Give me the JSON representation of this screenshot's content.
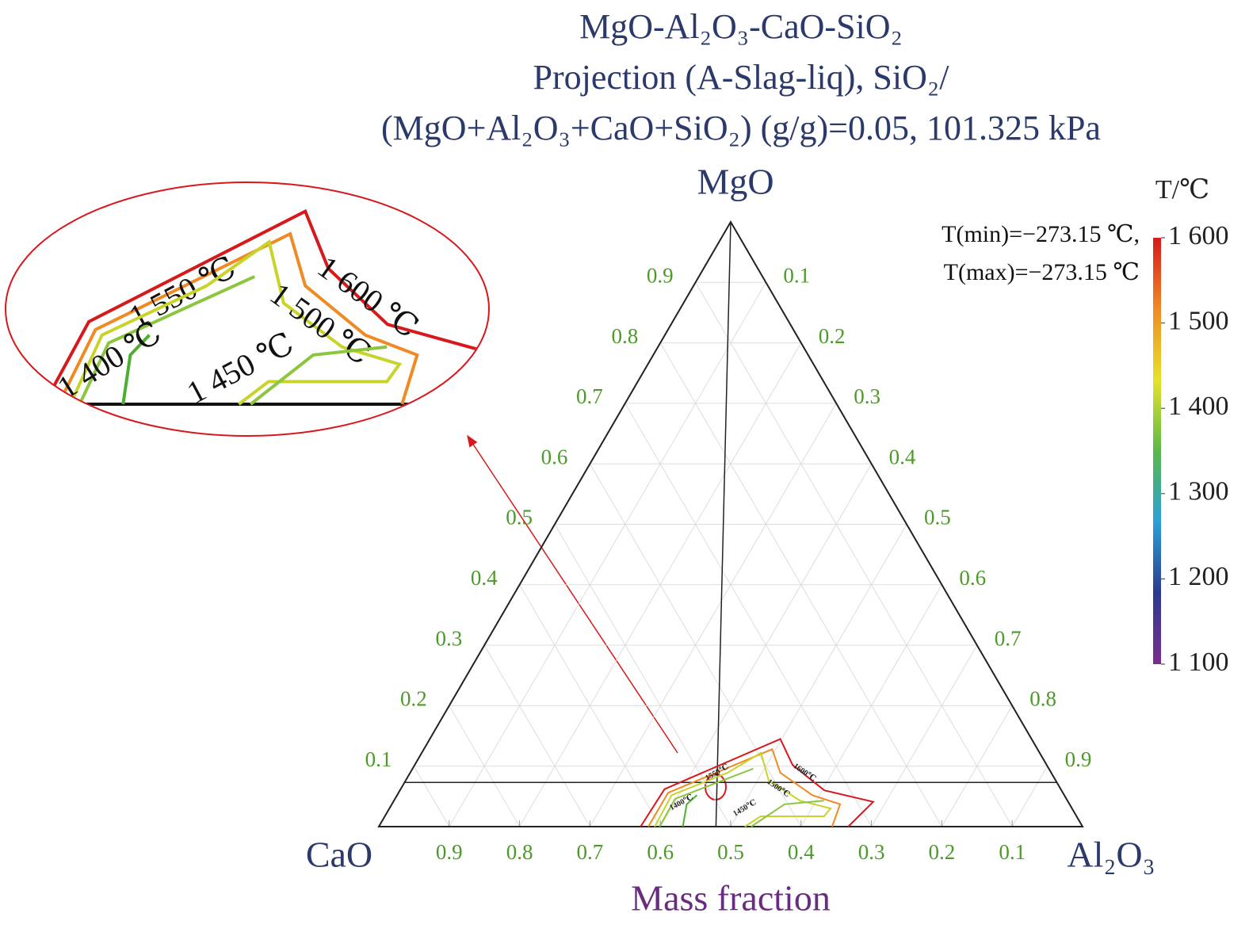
{
  "chart_data": {
    "type": "ternary",
    "title": [
      "MgO-Al₂O₃-CaO-SiO₂",
      "Projection (A-Slag-liq), SiO₂/",
      "(MgO+Al₂O₃+CaO+SiO₂) (g/g)=0.05, 101.325 kPa"
    ],
    "vertices": {
      "top": "MgO",
      "left": "CaO",
      "right": "Al₂O₃"
    },
    "axis_label": "Mass fraction",
    "left_ticks": [
      0.1,
      0.2,
      0.3,
      0.4,
      0.5,
      0.6,
      0.7,
      0.8,
      0.9
    ],
    "right_ticks": [
      0.1,
      0.2,
      0.3,
      0.4,
      0.5,
      0.6,
      0.7,
      0.8,
      0.9
    ],
    "bottom_ticks": [
      0.1,
      0.2,
      0.3,
      0.4,
      0.5,
      0.6,
      0.7,
      0.8,
      0.9
    ],
    "grid": true,
    "annotations": [
      "T(min)=−273.15 ℃,",
      "T(max)=−273.15 ℃"
    ],
    "colorbar": {
      "title": "T/℃",
      "clim": [
        1100,
        1600
      ],
      "colormap": [
        "#7b2d8e",
        "#2b3a8f",
        "#2aa0d8",
        "#5bb84a",
        "#e6e32a",
        "#f08a24",
        "#d7191c"
      ],
      "ticks": [
        {
          "value": 1600,
          "label": "1 600"
        },
        {
          "value": 1500,
          "label": "1 500"
        },
        {
          "value": 1400,
          "label": "1 400"
        },
        {
          "value": 1300,
          "label": "1 300"
        },
        {
          "value": 1200,
          "label": "1 200"
        },
        {
          "value": 1100,
          "label": "1 100"
        }
      ]
    },
    "reference_lines": [
      {
        "mgo": [
          1,
          0
        ],
        "al2o3": [
          0,
          0.479
        ]
      },
      {
        "mgo": [
          0.073,
          0.073
        ],
        "al2o3": [
          0,
          0.927
        ]
      }
    ],
    "contours": [
      {
        "name": "1 600 ℃",
        "small_label": "1600℃",
        "value": 1600,
        "color": "#d7191c",
        "mgo": [
          0,
          0.062,
          0.145,
          0.102,
          0.06,
          0.041,
          0
        ],
        "al2o3": [
          0.372,
          0.375,
          0.498,
          0.537,
          0.603,
          0.682,
          0.667
        ]
      },
      {
        "name": "1 550 ℃",
        "small_label": "1550℃",
        "value": 1550,
        "color": "#f08a24",
        "mgo": [
          0,
          0.056,
          0.128,
          0.089,
          0.052,
          0.037,
          0
        ],
        "al2o3": [
          0.383,
          0.383,
          0.495,
          0.526,
          0.59,
          0.637,
          0.644
        ]
      },
      {
        "name": "1 500 ℃",
        "small_label": "1500℃",
        "value": 1500,
        "color": "#c8d42a",
        "mgo": [
          0,
          0.052,
          0.089,
          0.122,
          0.076,
          0.043,
          0.03,
          0.017,
          0.017,
          0
        ],
        "al2o3": [
          0.392,
          0.39,
          0.451,
          0.482,
          0.516,
          0.577,
          0.627,
          0.624,
          0.534,
          0.52
        ]
      },
      {
        "name": "1 450 ℃",
        "small_label": "1450℃",
        "value": 1450,
        "color": "#8cc63f",
        "mgo": [
          0,
          0.046,
          0.096,
          null,
          0,
          0.037,
          0.043
        ],
        "al2o3": [
          0.399,
          0.398,
          0.484,
          null,
          0.529,
          0.558,
          0.611
        ]
      },
      {
        "name": "1 400 ℃",
        "small_label": "1400℃",
        "value": 1400,
        "color": "#4caf2e",
        "mgo": [
          0,
          0.037,
          0.052
        ],
        "al2o3": [
          0.432,
          0.419,
          0.426
        ]
      }
    ]
  }
}
